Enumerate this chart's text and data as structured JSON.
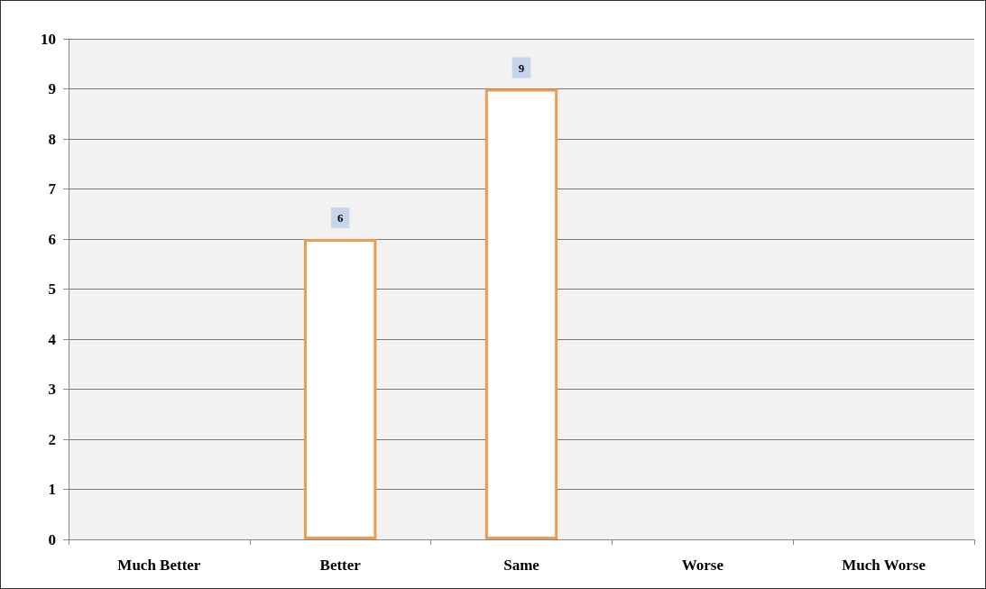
{
  "chart_data": {
    "type": "bar",
    "categories": [
      "Much Better",
      "Better",
      "Same",
      "Worse",
      "Much Worse"
    ],
    "values": [
      0,
      6,
      9,
      0,
      0
    ],
    "value_labels": [
      null,
      "6",
      "9",
      null,
      null
    ],
    "color": "#ed9b4f",
    "ylim": [
      0,
      10
    ],
    "yticks": [
      0,
      1,
      2,
      3,
      4,
      5,
      6,
      7,
      8,
      9,
      10
    ],
    "grid": "y"
  }
}
